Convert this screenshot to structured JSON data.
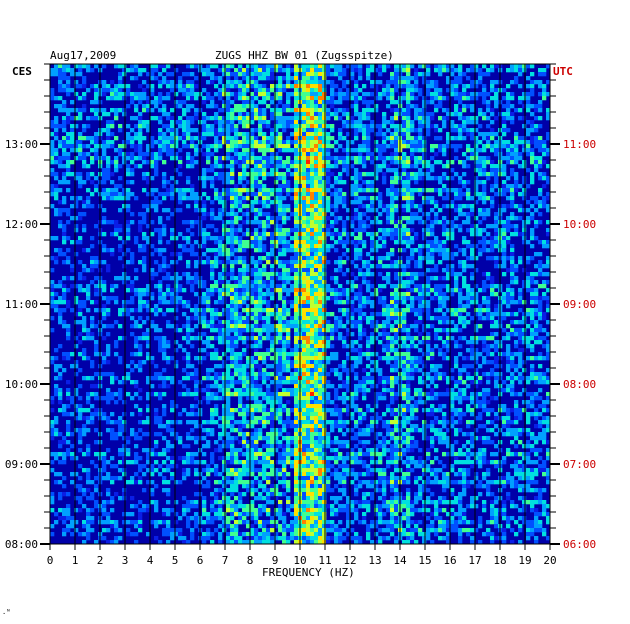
{
  "chart_data": {
    "type": "heatmap",
    "title_left": "Aug17,2009",
    "title_center": "ZUGS HHZ BW 01 (Zugsspitze)",
    "left_timezone": "CES",
    "right_timezone": "UTC",
    "xlabel": "FREQUENCY (HZ)",
    "xlim": [
      0,
      20
    ],
    "x_ticks": [
      "0",
      "1",
      "2",
      "3",
      "4",
      "5",
      "6",
      "7",
      "8",
      "9",
      "10",
      "11",
      "12",
      "13",
      "14",
      "15",
      "16",
      "17",
      "18",
      "19",
      "20"
    ],
    "left_time_labels": [
      "08:00",
      "09:00",
      "10:00",
      "11:00",
      "12:00",
      "13:00"
    ],
    "right_time_labels": [
      "06:00",
      "07:00",
      "08:00",
      "09:00",
      "10:00",
      "11:00"
    ],
    "colors": {
      "background": "#0000a8",
      "axis": "#000000",
      "utc_labels": "#cc0000",
      "spectral_colors": [
        "#0000c8",
        "#0a1ee6",
        "#0050ff",
        "#00a0ff",
        "#00e0e0",
        "#40ff90",
        "#c0ff30",
        "#ffe000",
        "#ff8000",
        "#ff2000"
      ]
    }
  }
}
